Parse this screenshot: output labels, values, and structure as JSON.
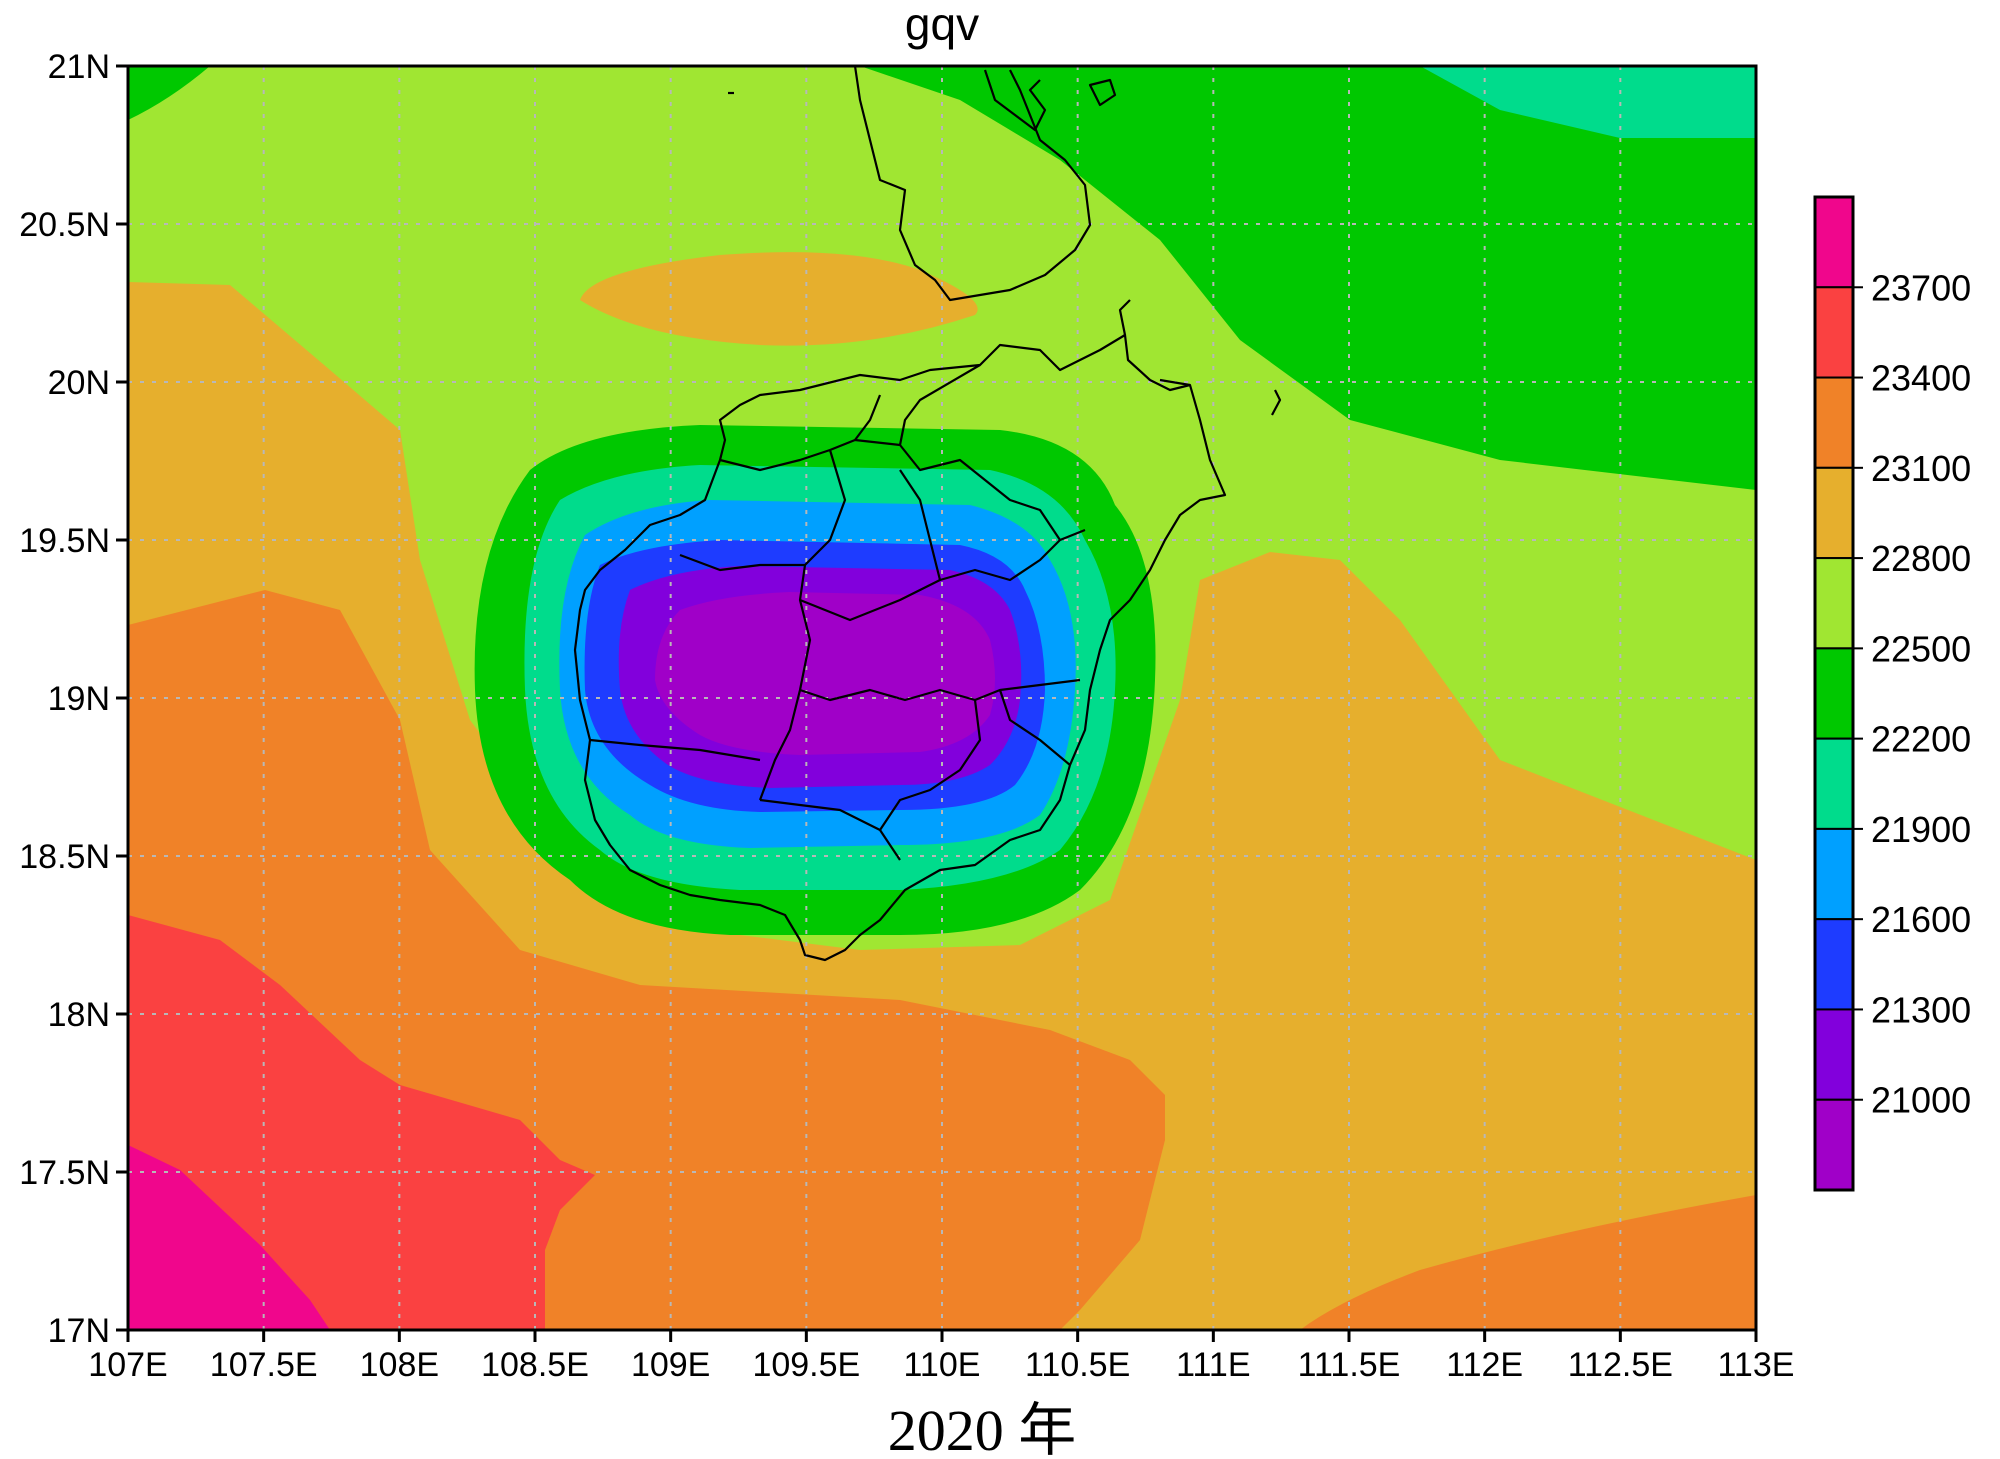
{
  "title": "gqv",
  "caption": "2020 年",
  "map": {
    "lon_range": [
      107,
      113
    ],
    "lat_range": [
      17,
      21
    ],
    "lon_ticks": [
      "107E",
      "107.5E",
      "108E",
      "108.5E",
      "109E",
      "109.5E",
      "110E",
      "110.5E",
      "111E",
      "111.5E",
      "112E",
      "112.5E",
      "113E"
    ],
    "lat_ticks": [
      "17N",
      "17.5N",
      "18N",
      "18.5N",
      "19N",
      "19.5N",
      "20N",
      "20.5N",
      "21N"
    ],
    "grid": true,
    "field_extremes": {
      "low_center": {
        "lon": 109.5,
        "lat": 19.0,
        "band": "below 21000"
      },
      "high_corner": {
        "lon": 107.2,
        "lat": 17.2,
        "band": "above 23700"
      }
    }
  },
  "legend": {
    "levels": [
      "23700",
      "23400",
      "23100",
      "22800",
      "22500",
      "22200",
      "21900",
      "21600",
      "21300",
      "21000"
    ],
    "colors": [
      "#f0068c",
      "#fa4141",
      "#f08228",
      "#e6af2d",
      "#a0e632",
      "#00c800",
      "#00dc8c",
      "#00a0ff",
      "#1e3cff",
      "#8200dc",
      "#a000c8"
    ]
  }
}
